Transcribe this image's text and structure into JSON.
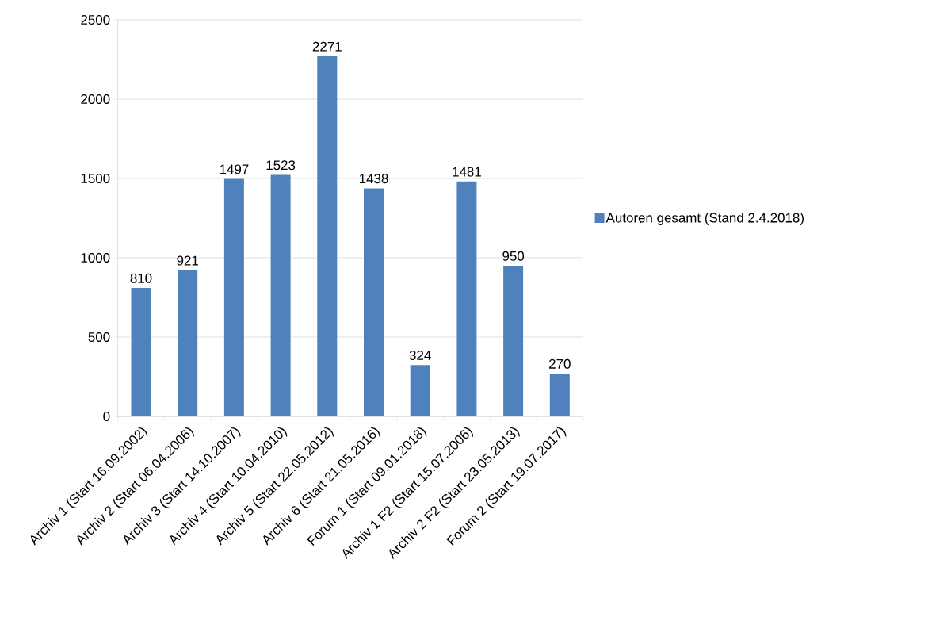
{
  "chart_data": {
    "type": "bar",
    "categories": [
      "Archiv 1 (Start 16.09.2002)",
      "Archiv 2 (Start 06.04.2006)",
      "Archiv 3 (Start 14.10.2007)",
      "Archiv 4 (Start 10.04.2010)",
      "Archiv 5 (Start 22.05.2012)",
      "Archiv 6 (Start 21.05.2016)",
      "Forum 1 (Start 09.01.2018)",
      "Archiv 1 F2 (Start 15.07.2006)",
      "Archiv 2 F2 (Start 23.05.2013)",
      "Forum 2 (Start 19.07.2017)"
    ],
    "series": [
      {
        "name": "Autoren gesamt (Stand 2.4.2018)",
        "color": "#4f81bd",
        "values": [
          810,
          921,
          1497,
          1523,
          2271,
          1438,
          324,
          1481,
          950,
          270
        ]
      }
    ],
    "ylim": [
      0,
      2500
    ],
    "yticks": [
      0,
      500,
      1000,
      1500,
      2000,
      2500
    ],
    "grid": "y",
    "legend": "right",
    "data_labels": true
  }
}
